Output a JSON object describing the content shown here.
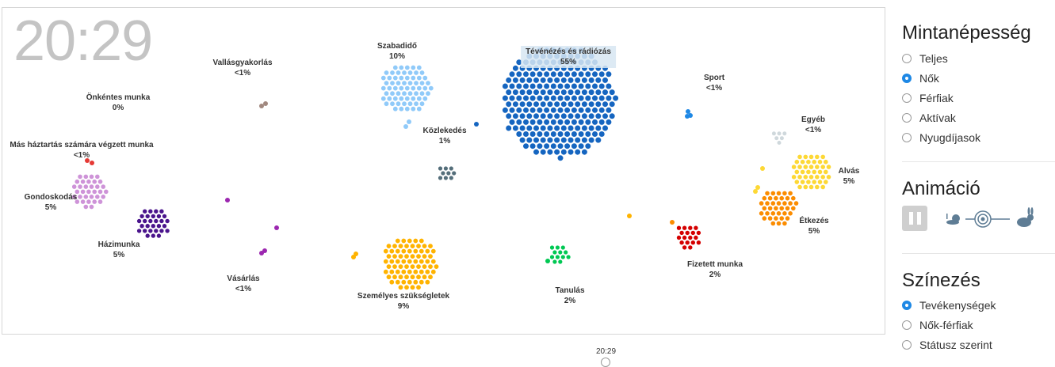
{
  "clock": "20:29",
  "bottom_time": "20:29",
  "activities": [
    {
      "key": "tv",
      "name": "Tévénézés és rádiózás",
      "pct": "55%",
      "color": "#1565c0",
      "highlight": true
    },
    {
      "key": "szabadido",
      "name": "Szabadidő",
      "pct": "10%",
      "color": "#90caf9"
    },
    {
      "key": "szemelyes",
      "name": "Személyes szükségletek",
      "pct": "9%",
      "color": "#ffb300"
    },
    {
      "key": "alvas",
      "name": "Alvás",
      "pct": "5%",
      "color": "#fdd835"
    },
    {
      "key": "etkezes",
      "name": "Étkezés",
      "pct": "5%",
      "color": "#fb8c00"
    },
    {
      "key": "gondoskodas",
      "name": "Gondoskodás",
      "pct": "5%",
      "color": "#ce93d8"
    },
    {
      "key": "hazimunka",
      "name": "Házimunka",
      "pct": "5%",
      "color": "#4a148c"
    },
    {
      "key": "fizetett",
      "name": "Fizetett munka",
      "pct": "2%",
      "color": "#d50000"
    },
    {
      "key": "tanulas",
      "name": "Tanulás",
      "pct": "2%",
      "color": "#00c853"
    },
    {
      "key": "kozlekedes",
      "name": "Közlekedés",
      "pct": "1%",
      "color": "#546e7a"
    },
    {
      "key": "sport",
      "name": "Sport",
      "pct": "<1%",
      "color": "#1e88e5"
    },
    {
      "key": "egyeb",
      "name": "Egyéb",
      "pct": "<1%",
      "color": "#cfd8dc"
    },
    {
      "key": "vallas",
      "name": "Vallásgyakorlás",
      "pct": "<1%",
      "color": "#a1887f"
    },
    {
      "key": "onkentes",
      "name": "Önkéntes munka",
      "pct": "0%",
      "color": "#999999"
    },
    {
      "key": "mashaztartas",
      "name": "Más háztartás számára végzett munka",
      "pct": "<1%",
      "color": "#e53935"
    },
    {
      "key": "vasarlas",
      "name": "Vásárlás",
      "pct": "<1%",
      "color": "#9c27b0"
    }
  ],
  "controls": {
    "population_title": "Mintanépesség",
    "population_options": [
      {
        "label": "Teljes",
        "selected": false
      },
      {
        "label": "Nők",
        "selected": true
      },
      {
        "label": "Férfiak",
        "selected": false
      },
      {
        "label": "Aktívak",
        "selected": false
      },
      {
        "label": "Nyugdíjasok",
        "selected": false
      }
    ],
    "animation_title": "Animáció",
    "coloring_title": "Színezés",
    "coloring_options": [
      {
        "label": "Tevékenységek",
        "selected": true
      },
      {
        "label": "Nők-férfiak",
        "selected": false
      },
      {
        "label": "Státusz szerint",
        "selected": false
      }
    ]
  }
}
